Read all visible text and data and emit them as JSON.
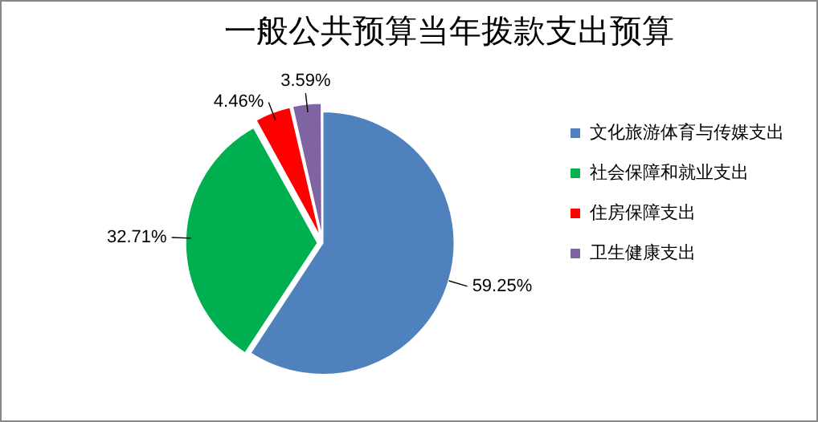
{
  "chart_data": {
    "type": "pie",
    "title": "一般公共预算当年拨款支出预算",
    "categories": [
      "文化旅游体育与传媒支出",
      "社会保障和就业支出",
      "住房保障支出",
      "卫生健康支出"
    ],
    "values": [
      59.25,
      32.71,
      4.46,
      3.59
    ],
    "colors": [
      "#4f81bd",
      "#00b050",
      "#ff0000",
      "#8064a2"
    ],
    "value_labels": [
      "59.25%",
      "32.71%",
      "4.46%",
      "3.59%"
    ],
    "legend": "right"
  }
}
